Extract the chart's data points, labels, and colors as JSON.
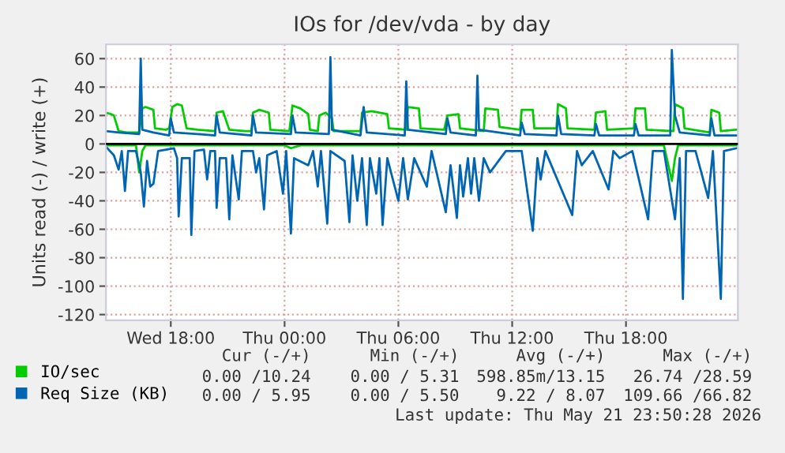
{
  "chart_data": {
    "type": "line",
    "title": "IOs for /dev/vda - by day",
    "ylabel": "Units read (-) / write (+)",
    "series": [
      {
        "name": "IO/sec",
        "color": "#00cc00",
        "x": [
          "2026-05-20T14:35",
          "2026-05-20T14:50",
          "2026-05-20T15:00",
          "2026-05-20T15:15",
          "2026-05-20T15:40",
          "2026-05-20T16:20",
          "2026-05-20T16:30",
          "2026-05-20T16:40",
          "2026-05-20T17:05",
          "2026-05-20T17:10",
          "2026-05-20T17:45",
          "2026-05-20T17:55",
          "2026-05-20T18:05",
          "2026-05-20T18:20",
          "2026-05-20T18:35",
          "2026-05-20T18:50",
          "2026-05-20T19:25",
          "2026-05-20T20:20",
          "2026-05-20T20:25",
          "2026-05-20T20:45",
          "2026-05-20T21:05",
          "2026-05-20T21:55",
          "2026-05-20T22:15",
          "2026-05-20T22:20",
          "2026-05-20T22:40",
          "2026-05-20T23:10",
          "2026-05-20T23:15",
          "2026-05-21T00:15",
          "2026-05-21T00:25",
          "2026-05-21T00:50",
          "2026-05-21T01:15",
          "2026-05-21T01:20",
          "2026-05-21T01:45",
          "2026-05-21T01:50",
          "2026-05-21T02:10",
          "2026-05-21T02:30",
          "2026-05-21T02:35",
          "2026-05-21T04:00",
          "2026-05-21T04:05",
          "2026-05-21T04:35",
          "2026-05-21T05:25",
          "2026-05-21T05:30",
          "2026-05-21T06:25",
          "2026-05-21T06:30",
          "2026-05-21T07:05",
          "2026-05-21T07:10",
          "2026-05-21T08:25",
          "2026-05-21T08:35",
          "2026-05-21T09:10",
          "2026-05-21T09:15",
          "2026-05-21T10:30",
          "2026-05-21T10:35",
          "2026-05-21T11:15",
          "2026-05-21T11:20",
          "2026-05-21T12:25",
          "2026-05-21T12:30",
          "2026-05-21T13:05",
          "2026-05-21T13:10",
          "2026-05-21T14:20",
          "2026-05-21T14:25",
          "2026-05-21T14:50",
          "2026-05-21T14:55",
          "2026-05-21T16:20",
          "2026-05-21T16:25",
          "2026-05-21T16:55",
          "2026-05-21T17:00",
          "2026-05-21T18:25",
          "2026-05-21T18:30",
          "2026-05-21T19:00",
          "2026-05-21T19:05",
          "2026-05-21T20:30",
          "2026-05-21T20:35",
          "2026-05-21T21:00",
          "2026-05-21T21:05",
          "2026-05-21T22:25",
          "2026-05-21T22:30",
          "2026-05-21T22:55",
          "2026-05-21T23:00",
          "2026-05-21T23:50"
        ],
        "values": [
          22,
          21,
          20,
          9,
          8,
          8,
          25,
          26,
          24,
          11,
          10,
          11,
          26,
          28,
          27,
          11,
          10,
          9,
          22,
          23,
          10,
          9,
          9,
          22,
          24,
          22,
          10,
          9,
          27,
          25,
          21,
          10,
          9,
          20,
          22,
          18,
          9,
          9,
          22,
          23,
          21,
          11,
          10,
          26,
          25,
          11,
          10,
          20,
          21,
          11,
          9,
          25,
          24,
          12,
          10,
          24,
          24,
          11,
          11,
          28,
          25,
          11,
          10,
          22,
          23,
          10,
          11,
          25,
          25,
          10,
          9,
          28,
          25,
          11,
          8,
          24,
          22,
          9,
          10
        ]
      },
      {
        "color": "#00cc00",
        "x": [
          "2026-05-20T14:35",
          "2026-05-20T16:10",
          "2026-05-20T16:20",
          "2026-05-20T16:30",
          "2026-05-20T16:40",
          "2026-05-21T00:00",
          "2026-05-21T00:20",
          "2026-05-21T00:50",
          "2026-05-21T20:00",
          "2026-05-21T20:25",
          "2026-05-21T20:35",
          "2026-05-21T20:45",
          "2026-05-21T23:50"
        ],
        "values": [
          -1,
          -1,
          -20,
          -5,
          -1,
          -1,
          -3,
          -1,
          -1,
          -26,
          -10,
          -1,
          -1
        ]
      },
      {
        "name": "Req Size (KB)",
        "color": "#0066b3",
        "x": [
          "2026-05-20T14:35",
          "2026-05-20T15:15",
          "2026-05-20T16:20",
          "2026-05-20T16:25",
          "2026-05-20T16:30",
          "2026-05-20T17:05",
          "2026-05-20T17:55",
          "2026-05-20T18:00",
          "2026-05-20T18:10",
          "2026-05-20T19:25",
          "2026-05-20T20:20",
          "2026-05-20T20:25",
          "2026-05-20T20:35",
          "2026-05-20T22:15",
          "2026-05-20T22:20",
          "2026-05-20T22:30",
          "2026-05-21T00:20",
          "2026-05-21T00:25",
          "2026-05-21T00:35",
          "2026-05-21T02:20",
          "2026-05-21T02:25",
          "2026-05-21T02:30",
          "2026-05-21T04:00",
          "2026-05-21T04:10",
          "2026-05-21T04:20",
          "2026-05-21T06:20",
          "2026-05-21T06:25",
          "2026-05-21T06:30",
          "2026-05-21T08:30",
          "2026-05-21T08:35",
          "2026-05-21T08:45",
          "2026-05-21T10:05",
          "2026-05-21T10:10",
          "2026-05-21T10:15",
          "2026-05-21T12:25",
          "2026-05-21T12:30",
          "2026-05-21T12:40",
          "2026-05-21T14:20",
          "2026-05-21T14:25",
          "2026-05-21T14:35",
          "2026-05-21T16:20",
          "2026-05-21T16:25",
          "2026-05-21T16:35",
          "2026-05-21T18:25",
          "2026-05-21T18:30",
          "2026-05-21T18:40",
          "2026-05-21T20:20",
          "2026-05-21T20:25",
          "2026-05-21T20:35",
          "2026-05-21T20:50",
          "2026-05-21T22:25",
          "2026-05-21T22:30",
          "2026-05-21T22:40",
          "2026-05-21T23:50"
        ],
        "values": [
          9,
          8,
          7,
          60,
          10,
          8,
          6,
          18,
          8,
          7,
          6,
          20,
          8,
          6,
          20,
          8,
          7,
          20,
          8,
          7,
          61,
          10,
          6,
          26,
          8,
          6,
          44,
          10,
          7,
          18,
          8,
          6,
          48,
          10,
          6,
          15,
          7,
          6,
          20,
          7,
          6,
          14,
          6,
          6,
          14,
          6,
          6,
          66,
          20,
          8,
          6,
          18,
          6,
          6
        ]
      },
      {
        "color": "#0066b3",
        "x": [
          "2026-05-20T14:35",
          "2026-05-20T15:00",
          "2026-05-20T15:15",
          "2026-05-20T15:25",
          "2026-05-20T15:35",
          "2026-05-20T15:45",
          "2026-05-20T16:10",
          "2026-05-20T16:25",
          "2026-05-20T16:35",
          "2026-05-20T16:45",
          "2026-05-20T16:55",
          "2026-05-20T17:05",
          "2026-05-20T17:20",
          "2026-05-20T18:10",
          "2026-05-20T18:20",
          "2026-05-20T18:25",
          "2026-05-20T18:35",
          "2026-05-20T19:00",
          "2026-05-20T19:05",
          "2026-05-20T19:15",
          "2026-05-20T19:45",
          "2026-05-20T19:55",
          "2026-05-20T20:05",
          "2026-05-20T20:20",
          "2026-05-20T20:25",
          "2026-05-20T20:35",
          "2026-05-20T20:55",
          "2026-05-20T21:05",
          "2026-05-20T21:15",
          "2026-05-20T21:35",
          "2026-05-20T21:45",
          "2026-05-20T22:20",
          "2026-05-20T22:30",
          "2026-05-20T22:40",
          "2026-05-20T22:55",
          "2026-05-20T23:05",
          "2026-05-20T23:35",
          "2026-05-20T23:55",
          "2026-05-21T00:05",
          "2026-05-21T00:20",
          "2026-05-21T00:30",
          "2026-05-21T01:15",
          "2026-05-21T01:30",
          "2026-05-21T01:45",
          "2026-05-21T01:55",
          "2026-05-21T02:15",
          "2026-05-21T02:25",
          "2026-05-21T03:10",
          "2026-05-21T03:25",
          "2026-05-21T03:35",
          "2026-05-21T03:50",
          "2026-05-21T04:05",
          "2026-05-21T04:20",
          "2026-05-21T04:30",
          "2026-05-21T04:50",
          "2026-05-21T05:00",
          "2026-05-21T05:10",
          "2026-05-21T05:25",
          "2026-05-21T06:00",
          "2026-05-21T06:15",
          "2026-05-21T06:30",
          "2026-05-21T06:50",
          "2026-05-21T07:30",
          "2026-05-21T07:45",
          "2026-05-21T08:30",
          "2026-05-21T08:45",
          "2026-05-21T09:05",
          "2026-05-21T09:15",
          "2026-05-21T09:25",
          "2026-05-21T09:40",
          "2026-05-21T09:50",
          "2026-05-21T10:00",
          "2026-05-21T10:15",
          "2026-05-21T10:30",
          "2026-05-21T10:50",
          "2026-05-21T11:40",
          "2026-05-21T12:30",
          "2026-05-21T13:05",
          "2026-05-21T13:20",
          "2026-05-21T13:30",
          "2026-05-21T13:45",
          "2026-05-21T15:10",
          "2026-05-21T15:25",
          "2026-05-21T15:40",
          "2026-05-21T16:15",
          "2026-05-21T17:05",
          "2026-05-21T17:20",
          "2026-05-21T17:40",
          "2026-05-21T18:20",
          "2026-05-21T19:10",
          "2026-05-21T19:25",
          "2026-05-21T20:00",
          "2026-05-21T20:35",
          "2026-05-21T20:50",
          "2026-05-21T21:00",
          "2026-05-21T21:10",
          "2026-05-21T21:40",
          "2026-05-21T22:20",
          "2026-05-21T22:35",
          "2026-05-21T23:00",
          "2026-05-21T23:10",
          "2026-05-21T23:50"
        ],
        "values": [
          -2,
          -8,
          -18,
          -5,
          -33,
          -5,
          -5,
          -20,
          -44,
          -12,
          -30,
          -28,
          -5,
          -3,
          -10,
          -51,
          -10,
          -10,
          -64,
          -5,
          -4,
          -25,
          -5,
          -5,
          -45,
          -10,
          -10,
          -53,
          -8,
          -39,
          -5,
          -5,
          -20,
          -10,
          -46,
          -8,
          -5,
          -35,
          -5,
          -63,
          -10,
          -15,
          -5,
          -30,
          -5,
          -56,
          -5,
          -12,
          -55,
          -8,
          -40,
          -10,
          -57,
          -10,
          -35,
          -10,
          -57,
          -10,
          -40,
          -10,
          -39,
          -10,
          -30,
          -5,
          -48,
          -15,
          -52,
          -15,
          -37,
          -10,
          -35,
          -10,
          -40,
          -10,
          -20,
          -5,
          -5,
          -61,
          -10,
          -25,
          -5,
          -50,
          -5,
          -15,
          -5,
          -32,
          -5,
          -10,
          -5,
          -53,
          -5,
          -5,
          -53,
          -10,
          -109,
          -5,
          -5,
          -38,
          -5,
          -109,
          -5,
          -3
        ]
      }
    ],
    "xlim": [
      "2026-05-20T14:35",
      "2026-05-21T23:54"
    ],
    "xticks": [
      {
        "value": "2026-05-20T18:00",
        "label": "Wed 18:00"
      },
      {
        "value": "2026-05-21T00:00",
        "label": "Thu 00:00"
      },
      {
        "value": "2026-05-21T06:00",
        "label": "Thu 06:00"
      },
      {
        "value": "2026-05-21T12:00",
        "label": "Thu 12:00"
      },
      {
        "value": "2026-05-21T18:00",
        "label": "Thu 18:00"
      }
    ],
    "ylim": [
      -124,
      70
    ],
    "yticks": [
      -120,
      -100,
      -80,
      -60,
      -40,
      -20,
      0,
      20,
      40,
      60
    ],
    "ref_lines": [
      {
        "axis": "y",
        "value": 0,
        "color": "#000000"
      }
    ],
    "grid": true,
    "legend": "bottom left",
    "line_style": "solid",
    "annotations": [
      "Cur (-/+)",
      "Min (-/+)",
      "Avg (-/+)",
      "Max (-/+)",
      "0.00 /10.24",
      "0.00 / 5.31",
      "598.85m/13.15",
      "26.74 /28.59",
      "0.00 / 5.95",
      "0.00 / 5.50",
      "9.22 / 8.07",
      "109.66 /66.82",
      "Last update: Thu May 21 23:50:28 2026"
    ]
  }
}
